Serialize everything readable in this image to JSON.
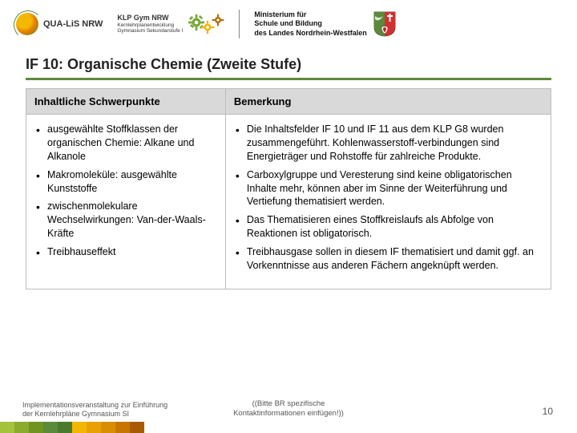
{
  "header": {
    "qualis_label": "QUA-LiS NRW",
    "klp_title": "KLP Gym NRW",
    "klp_sub": "Kernlehrplanentwicklung\nGymnasium Sekundarstufe I",
    "ministry_line1": "Ministerium für",
    "ministry_line2": "Schule und Bildung",
    "ministry_line3": "des Landes Nordrhein-Westfalen"
  },
  "title": "IF 10: Organische Chemie (Zweite Stufe)",
  "table": {
    "col1_header": "Inhaltliche Schwerpunkte",
    "col2_header": "Bemerkung",
    "left_items": [
      "ausgewählte Stoffklassen der organischen Chemie: Alkane und Alkanole",
      "Makromoleküle: ausgewählte Kunststoffe",
      "zwischenmolekulare Wechselwirkungen: Van-der-Waals-Kräfte",
      "Treibhauseffekt"
    ],
    "right_items": [
      "Die Inhaltsfelder IF 10 und IF 11 aus dem KLP G8 wurden zusammengeführt. Kohlenwasserstoff-verbindungen sind Energieträger und Rohstoffe für zahlreiche Produkte.",
      "Carboxylgruppe und Veresterung sind keine obligatorischen Inhalte mehr, können aber im Sinne der Weiterführung und Vertiefung thematisiert werden.",
      "Das Thematisieren eines Stoffkreislaufs als Abfolge von Reaktionen ist obligatorisch.",
      "Treibhausgase sollen in diesem IF thematisiert und damit ggf. an Vorkenntnisse aus anderen Fächern angeknüpft werden."
    ]
  },
  "footer": {
    "left_line1": "Implementationsveranstaltung zur Einführung",
    "left_line2": "der Kernlehrpläne Gymnasium SI",
    "center_line1": "((Bitte BR spezifische",
    "center_line2": "Kontaktinformationen einfügen!))",
    "page_number": "10",
    "stripe_colors": [
      "#a5c23d",
      "#8bab2f",
      "#6f941f",
      "#5a8a3a",
      "#4a7a2e",
      "#f2b705",
      "#e8a100",
      "#d98e00",
      "#c77500",
      "#a85a00"
    ]
  },
  "colors": {
    "title_rule": "#5e8a3a",
    "th_bg": "#d9d9d9",
    "gear1": "#7aa83a",
    "gear2": "#f2b300",
    "gear3": "#b26b00"
  }
}
